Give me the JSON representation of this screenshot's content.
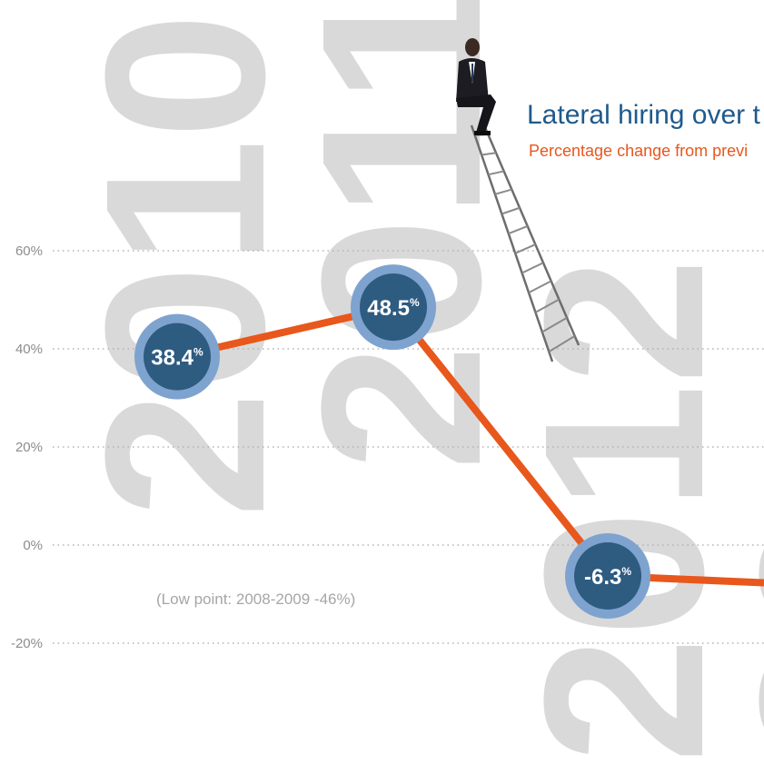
{
  "chart_data": {
    "type": "line",
    "title": "Lateral hiring over t",
    "subtitle": "Percentage change from previ",
    "annotation": "(Low point: 2008-2009 -46%)",
    "years": [
      "2010",
      "2011",
      "2012",
      "20"
    ],
    "y_ticks": [
      "60%",
      "40%",
      "20%",
      "0%",
      "-20%"
    ],
    "ylim": [
      -20,
      60
    ],
    "grid": "dotted horizontal",
    "series": [
      {
        "values": [
          38.4,
          48.5,
          -6.3,
          -8.0
        ],
        "labels": [
          "38.4",
          "48.5",
          "-6.3",
          ""
        ],
        "unit": "%"
      }
    ]
  },
  "colors": {
    "line": "#e8571c",
    "circle_outer": "#7ea3cf",
    "circle_inner": "#2e5b80",
    "title": "#1f5a8c",
    "subtitle": "#e8571c",
    "year_watermark": "#d9d9da",
    "grid": "#b3b3b3"
  },
  "decoration": {
    "illustration": "businessman-sitting-on-ladder"
  }
}
